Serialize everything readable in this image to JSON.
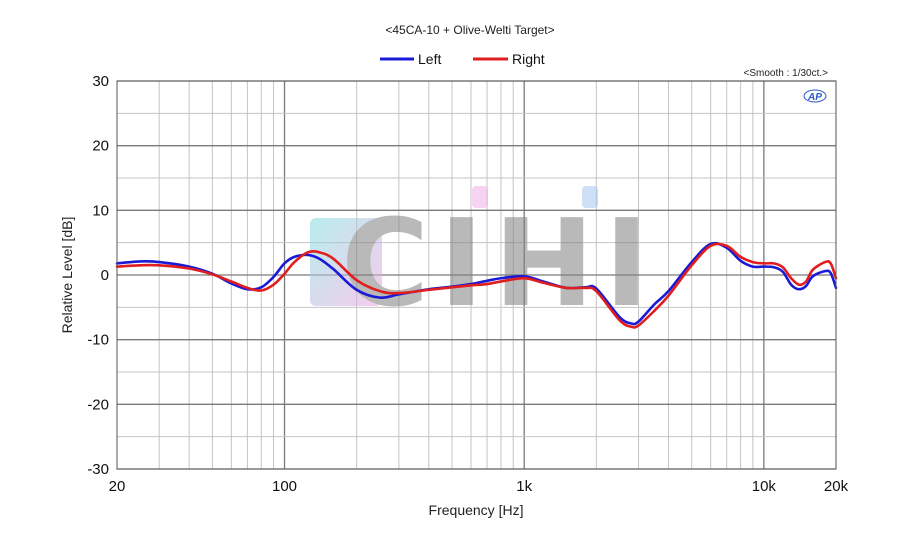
{
  "chart_data": {
    "type": "line",
    "title": "<45CA-10 + Olive-Welti Target>",
    "smoothing": "<Smooth : 1/30ct.>",
    "logo_text": "AP",
    "watermark_text": "CIHI",
    "xlabel": "Frequency [Hz]",
    "ylabel": "Relative Level [dB]",
    "x_scale": "log",
    "xlim": [
      20,
      20000
    ],
    "ylim": [
      -30,
      30
    ],
    "x_ticks": [
      20,
      100,
      1000,
      10000,
      20000
    ],
    "x_tick_labels": [
      "20",
      "100",
      "1k",
      "10k",
      "20k"
    ],
    "y_ticks": [
      30,
      20,
      10,
      0,
      -10,
      -20,
      -30
    ],
    "y_tick_labels": [
      "30",
      "20",
      "10",
      "0",
      "-10",
      "-20",
      "-30"
    ],
    "grid": true,
    "legend_position": "top-center",
    "series": [
      {
        "name": "Left",
        "color": "#1a1ad6",
        "x": [
          20,
          25,
          30,
          40,
          50,
          60,
          70,
          80,
          90,
          100,
          110,
          125,
          140,
          160,
          200,
          250,
          300,
          400,
          500,
          600,
          700,
          800,
          1000,
          1200,
          1500,
          1800,
          2000,
          2500,
          2800,
          3000,
          3500,
          4000,
          5000,
          6000,
          7000,
          8000,
          9000,
          10000,
          11000,
          12000,
          13000,
          14000,
          15000,
          16000,
          18000,
          19000,
          20000
        ],
        "y": [
          1.8,
          2.1,
          2.0,
          1.3,
          0.2,
          -1.3,
          -2.2,
          -1.9,
          -0.3,
          1.8,
          2.8,
          3.1,
          2.5,
          0.9,
          -2.3,
          -3.5,
          -3.0,
          -2.2,
          -1.8,
          -1.4,
          -0.9,
          -0.5,
          -0.2,
          -1.0,
          -2.0,
          -1.9,
          -2.1,
          -6.5,
          -7.5,
          -7.2,
          -4.5,
          -2.5,
          2.0,
          4.8,
          4.2,
          2.2,
          1.3,
          1.3,
          1.2,
          0.5,
          -1.5,
          -2.2,
          -1.7,
          -0.2,
          0.6,
          0.3,
          -2.0
        ]
      },
      {
        "name": "Right",
        "color": "#e01e1e",
        "x": [
          20,
          25,
          30,
          40,
          50,
          60,
          70,
          80,
          90,
          100,
          110,
          125,
          140,
          160,
          200,
          250,
          300,
          400,
          500,
          600,
          700,
          800,
          1000,
          1200,
          1500,
          1800,
          2000,
          2500,
          2800,
          3000,
          3500,
          4000,
          5000,
          6000,
          7000,
          8000,
          9000,
          10000,
          11000,
          12000,
          13000,
          14000,
          15000,
          16000,
          18000,
          19000,
          20000
        ],
        "y": [
          1.3,
          1.5,
          1.5,
          1.0,
          0.1,
          -1.0,
          -2.0,
          -2.4,
          -1.5,
          0.2,
          2.0,
          3.5,
          3.5,
          2.5,
          -0.8,
          -2.5,
          -2.8,
          -2.3,
          -1.9,
          -1.6,
          -1.4,
          -1.0,
          -0.5,
          -1.2,
          -2.0,
          -2.0,
          -2.5,
          -7.0,
          -8.0,
          -7.8,
          -5.5,
          -3.2,
          1.5,
          4.5,
          4.5,
          2.8,
          2.0,
          1.8,
          1.8,
          1.2,
          -0.5,
          -1.5,
          -1.0,
          0.8,
          2.0,
          1.8,
          -0.5
        ]
      }
    ]
  }
}
